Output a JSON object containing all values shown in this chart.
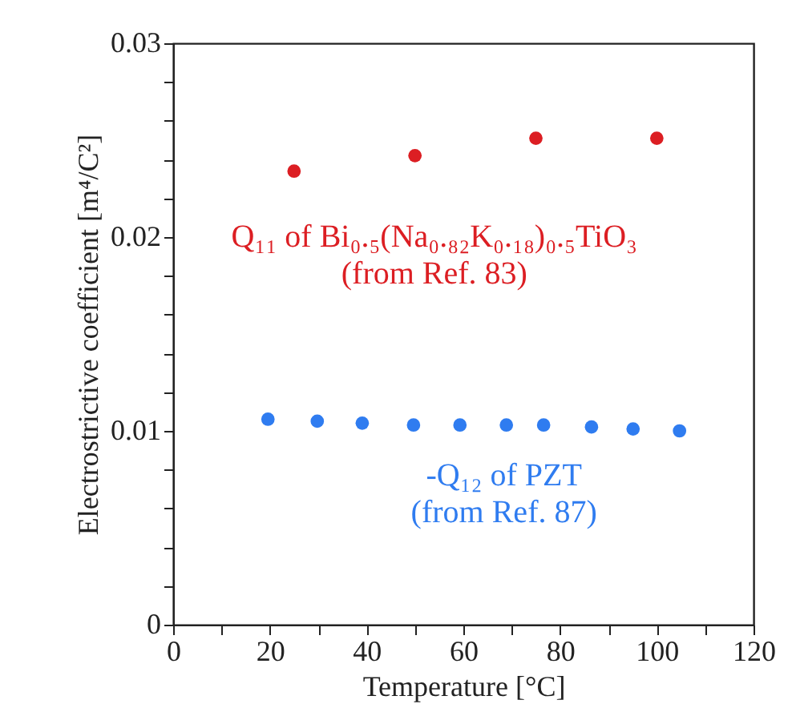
{
  "chart_data": {
    "type": "scatter",
    "xlabel": "Temperature [°C]",
    "ylabel": "Electrostrictive coefficient [m⁴/C²]",
    "series": [
      {
        "name": "Q₁₁ of Bi₀.₅(Na₀.₈₂K₀.₁₈)₀.₅TiO₃",
        "color": "#dc1e23",
        "x": [
          25,
          50,
          75,
          100
        ],
        "values": [
          0.0234,
          0.0242,
          0.0251,
          0.0251
        ]
      },
      {
        "name": "-Q₁₂ of PZT",
        "color": "#2f7cf0",
        "x": [
          19.6,
          29.8,
          39.1,
          49.7,
          59.3,
          68.9,
          76.6,
          86.5,
          95.1,
          104.7
        ],
        "values": [
          0.0106,
          0.0105,
          0.0104,
          0.0103,
          0.0103,
          0.0103,
          0.0103,
          0.0102,
          0.0101,
          0.01
        ]
      }
    ],
    "annotations": [
      "(from Ref. 83)",
      "(from Ref. 87)"
    ],
    "xlim": [
      0,
      120
    ],
    "ylim": [
      0,
      0.03
    ],
    "xticks": [
      0,
      {
        "value": 10,
        "label": null
      },
      20,
      {
        "value": 30,
        "label": null
      },
      40,
      {
        "value": 50,
        "label": null
      },
      60,
      {
        "value": 70,
        "label": null
      },
      80,
      {
        "value": 90,
        "label": null
      },
      100,
      {
        "value": 110,
        "label": null
      },
      120
    ],
    "yticks": [
      0,
      {
        "value": 0.002,
        "label": null
      },
      {
        "value": 0.004,
        "label": null
      },
      {
        "value": 0.006,
        "label": null
      },
      {
        "value": 0.008,
        "label": null
      },
      0.01,
      {
        "value": 0.012,
        "label": null
      },
      {
        "value": 0.014,
        "label": null
      },
      {
        "value": 0.016,
        "label": null
      },
      {
        "value": 0.018,
        "label": null
      },
      0.02,
      {
        "value": 0.022,
        "label": null
      },
      {
        "value": 0.024,
        "label": null
      },
      {
        "value": 0.026,
        "label": null
      },
      {
        "value": 0.028,
        "label": null
      },
      0.03
    ],
    "grid": false,
    "legend": false,
    "marker": "circle"
  }
}
